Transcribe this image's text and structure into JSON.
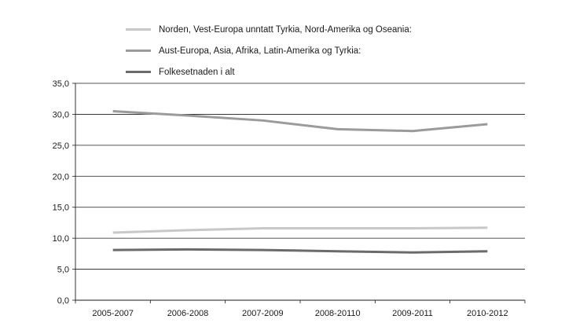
{
  "chart_data": {
    "type": "line",
    "categories": [
      "2005-2007",
      "2006-2008",
      "2007-2009",
      "2008-20110",
      "2009-2011",
      "2010-2012"
    ],
    "series": [
      {
        "name": "Norden, Vest-Europa unntatt Tyrkia, Nord-Amerika og Oseania:",
        "values": [
          10.9,
          11.3,
          11.6,
          11.6,
          11.6,
          11.7
        ],
        "color": "#c8c8c8"
      },
      {
        "name": "Aust-Europa, Asia, Afrika, Latin-Amerika og Tyrkia:",
        "values": [
          30.5,
          29.8,
          29.0,
          27.6,
          27.3,
          28.4
        ],
        "color": "#9b9b9b"
      },
      {
        "name": "Folkesetnaden i alt",
        "values": [
          8.1,
          8.2,
          8.1,
          7.9,
          7.7,
          7.9
        ],
        "color": "#6b6b6b"
      }
    ],
    "yticks": [
      "0,0",
      "5,0",
      "10,0",
      "15,0",
      "20,0",
      "25,0",
      "30,0",
      "35,0"
    ],
    "ylim": [
      0,
      35
    ],
    "grid": true,
    "legend_position": "top"
  }
}
